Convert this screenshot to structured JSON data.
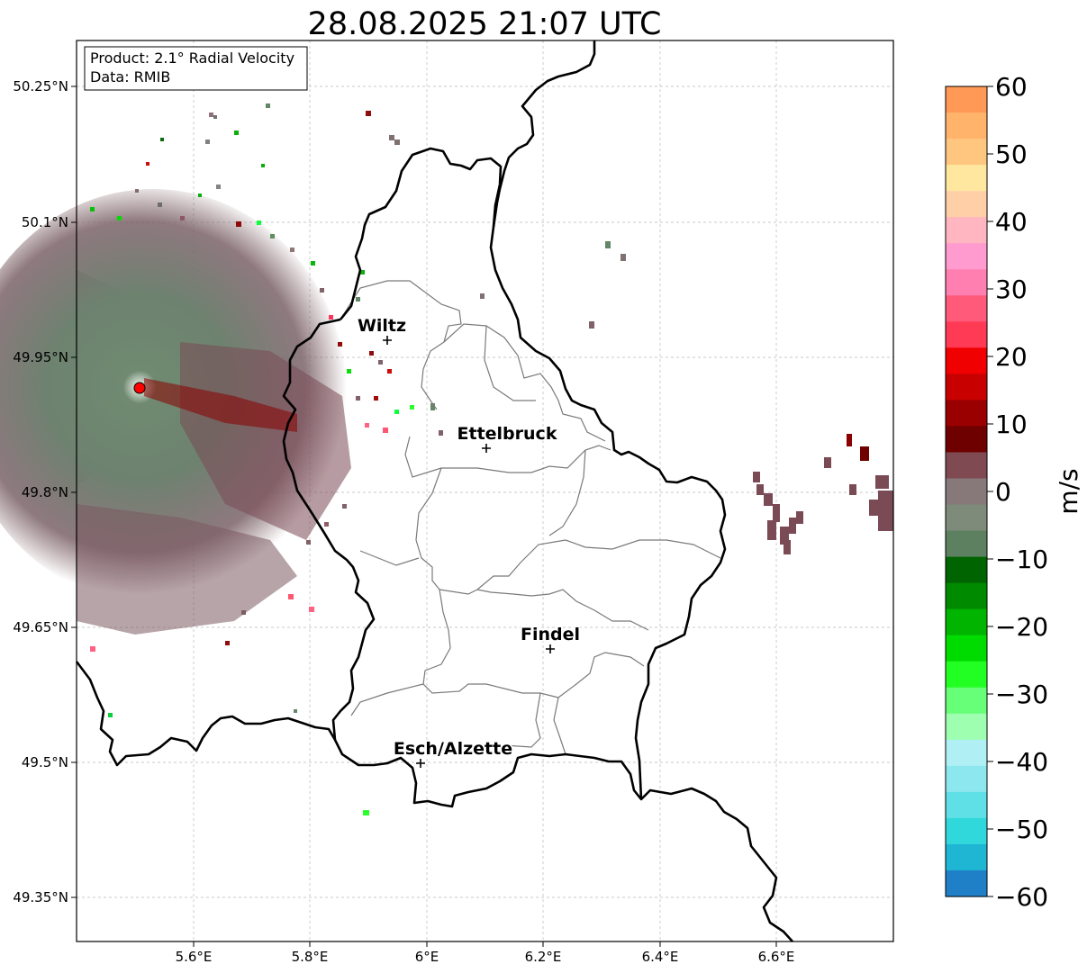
{
  "title": "28.08.2025 21:07 UTC",
  "info_box": {
    "product": "Product: 2.1° Radial Velocity",
    "data": "Data: RMIB"
  },
  "axes": {
    "lon_ticks": [
      "5.6°E",
      "5.8°E",
      "6°E",
      "6.2°E",
      "6.4°E",
      "6.6°E"
    ],
    "lat_ticks": [
      "50.25°N",
      "50.1°N",
      "49.95°N",
      "49.8°N",
      "49.65°N",
      "49.5°N",
      "49.35°N"
    ]
  },
  "cities": [
    {
      "name": "Wiltz",
      "lon": 5.93,
      "lat": 49.97
    },
    {
      "name": "Ettelbruck",
      "lon": 6.1,
      "lat": 49.85
    },
    {
      "name": "Findel",
      "lon": 6.21,
      "lat": 49.63
    },
    {
      "name": "Esch/Alzette",
      "lon": 5.99,
      "lat": 49.5
    }
  ],
  "radar_site": {
    "lon": 5.51,
    "lat": 49.91
  },
  "colorbar": {
    "label": "m/s",
    "min": -60,
    "max": 60,
    "ticks": [
      "60",
      "50",
      "40",
      "30",
      "20",
      "10",
      "0",
      "−10",
      "−20",
      "−30",
      "−40",
      "−50",
      "−60"
    ],
    "colors": [
      "#ff9955",
      "#ffb36b",
      "#ffc680",
      "#ffe7a0",
      "#ffd0a8",
      "#ffb6c0",
      "#ff9bcf",
      "#ff7fb0",
      "#ff5a7a",
      "#ff3a55",
      "#f00000",
      "#c80000",
      "#9a0000",
      "#6e0000",
      "#7f4a52",
      "#87787a",
      "#7e8a7a",
      "#5c8060",
      "#006400",
      "#008a00",
      "#00b400",
      "#00dc00",
      "#22ff22",
      "#66ff77",
      "#9fffb0",
      "#b0f0f4",
      "#8ce8ee",
      "#5fe0e6",
      "#30d8dc",
      "#1fb6d4",
      "#1f80c8"
    ]
  }
}
